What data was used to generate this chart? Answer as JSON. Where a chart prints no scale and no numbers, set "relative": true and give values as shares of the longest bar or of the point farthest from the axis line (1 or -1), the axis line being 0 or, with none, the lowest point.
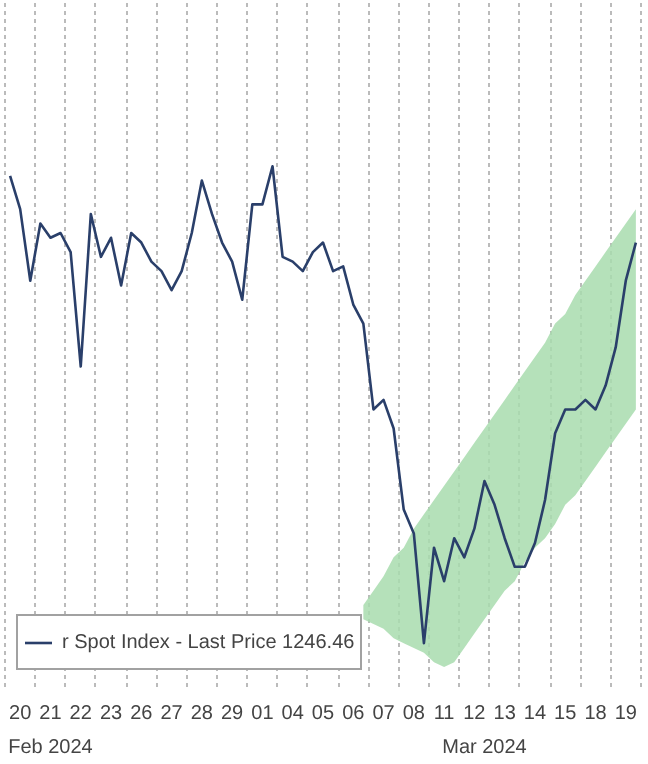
{
  "chart_data": {
    "type": "line",
    "relative": true,
    "grid": "x",
    "legend": "bottom left",
    "line_style": "solid",
    "marker": "none",
    "categories": [
      null,
      "20",
      null,
      null,
      "21",
      null,
      null,
      "22",
      null,
      null,
      "23",
      null,
      null,
      "26",
      null,
      null,
      "27",
      null,
      null,
      "28",
      null,
      null,
      "29",
      null,
      null,
      "01",
      null,
      null,
      "04",
      null,
      null,
      "05",
      null,
      null,
      "06",
      null,
      null,
      "07",
      null,
      null,
      "08",
      null,
      null,
      "11",
      null,
      null,
      "12",
      null,
      null,
      "13",
      null,
      null,
      "14",
      null,
      null,
      "15",
      null,
      null,
      "18",
      null,
      null,
      "19",
      null
    ],
    "annotations": [
      "Feb 2024",
      "Mar 2024"
    ],
    "series": [
      {
        "type": "area",
        "color": "#a8dcae",
        "values": [
          null,
          null,
          null,
          null,
          null,
          null,
          null,
          null,
          null,
          null,
          null,
          null,
          null,
          null,
          null,
          null,
          null,
          null,
          null,
          null,
          null,
          null,
          null,
          null,
          null,
          null,
          null,
          null,
          null,
          null,
          null,
          null,
          null,
          null,
          null,
          null,
          null,
          null,
          null,
          null,
          null,
          null,
          null,
          null,
          null,
          null,
          null,
          null,
          null,
          null,
          null,
          null,
          null,
          null,
          null,
          null,
          null,
          null,
          null,
          null,
          null,
          null,
          null
        ],
        "lower": [
          null,
          null,
          null,
          null,
          null,
          null,
          null,
          null,
          null,
          null,
          null,
          null,
          null,
          null,
          null,
          null,
          null,
          null,
          null,
          null,
          null,
          null,
          null,
          null,
          null,
          null,
          null,
          null,
          null,
          null,
          null,
          null,
          null,
          null,
          null,
          0.05,
          0.04,
          0.03,
          0.01,
          0,
          -0.01,
          -0.02,
          -0.04,
          -0.05,
          -0.04,
          -0.01,
          0.02,
          0.05,
          0.08,
          0.11,
          0.13,
          0.17,
          0.2,
          0.22,
          0.25,
          0.29,
          0.31,
          0.34,
          0.37,
          0.4,
          0.43,
          0.46,
          0.49
        ],
        "upper": [
          null,
          null,
          null,
          null,
          null,
          null,
          null,
          null,
          null,
          null,
          null,
          null,
          null,
          null,
          null,
          null,
          null,
          null,
          null,
          null,
          null,
          null,
          null,
          null,
          null,
          null,
          null,
          null,
          null,
          null,
          null,
          null,
          null,
          null,
          null,
          0.08,
          0.11,
          0.14,
          0.18,
          0.2,
          0.24,
          0.27,
          0.3,
          0.33,
          0.36,
          0.39,
          0.42,
          0.45,
          0.48,
          0.51,
          0.54,
          0.57,
          0.6,
          0.63,
          0.67,
          0.69,
          0.73,
          0.76,
          0.79,
          0.82,
          0.85,
          0.88,
          0.91
        ]
      },
      {
        "name": "r Spot Index - Last Price 1246.46",
        "color": "#2a3f6a",
        "values": [
          0.98,
          0.91,
          0.76,
          0.88,
          0.85,
          0.86,
          0.82,
          0.58,
          0.9,
          0.81,
          0.85,
          0.75,
          0.86,
          0.84,
          0.8,
          0.78,
          0.74,
          0.78,
          0.86,
          0.97,
          0.9,
          0.84,
          0.8,
          0.72,
          0.92,
          0.92,
          1.0,
          0.81,
          0.8,
          0.78,
          0.82,
          0.84,
          0.78,
          0.79,
          0.71,
          0.67,
          0.49,
          0.51,
          0.45,
          0.28,
          0.23,
          0.0,
          0.2,
          0.13,
          0.22,
          0.18,
          0.24,
          0.34,
          0.29,
          0.22,
          0.16,
          0.16,
          0.21,
          0.3,
          0.44,
          0.49,
          0.49,
          0.51,
          0.49,
          0.54,
          0.62,
          0.76,
          0.84
        ]
      }
    ]
  }
}
